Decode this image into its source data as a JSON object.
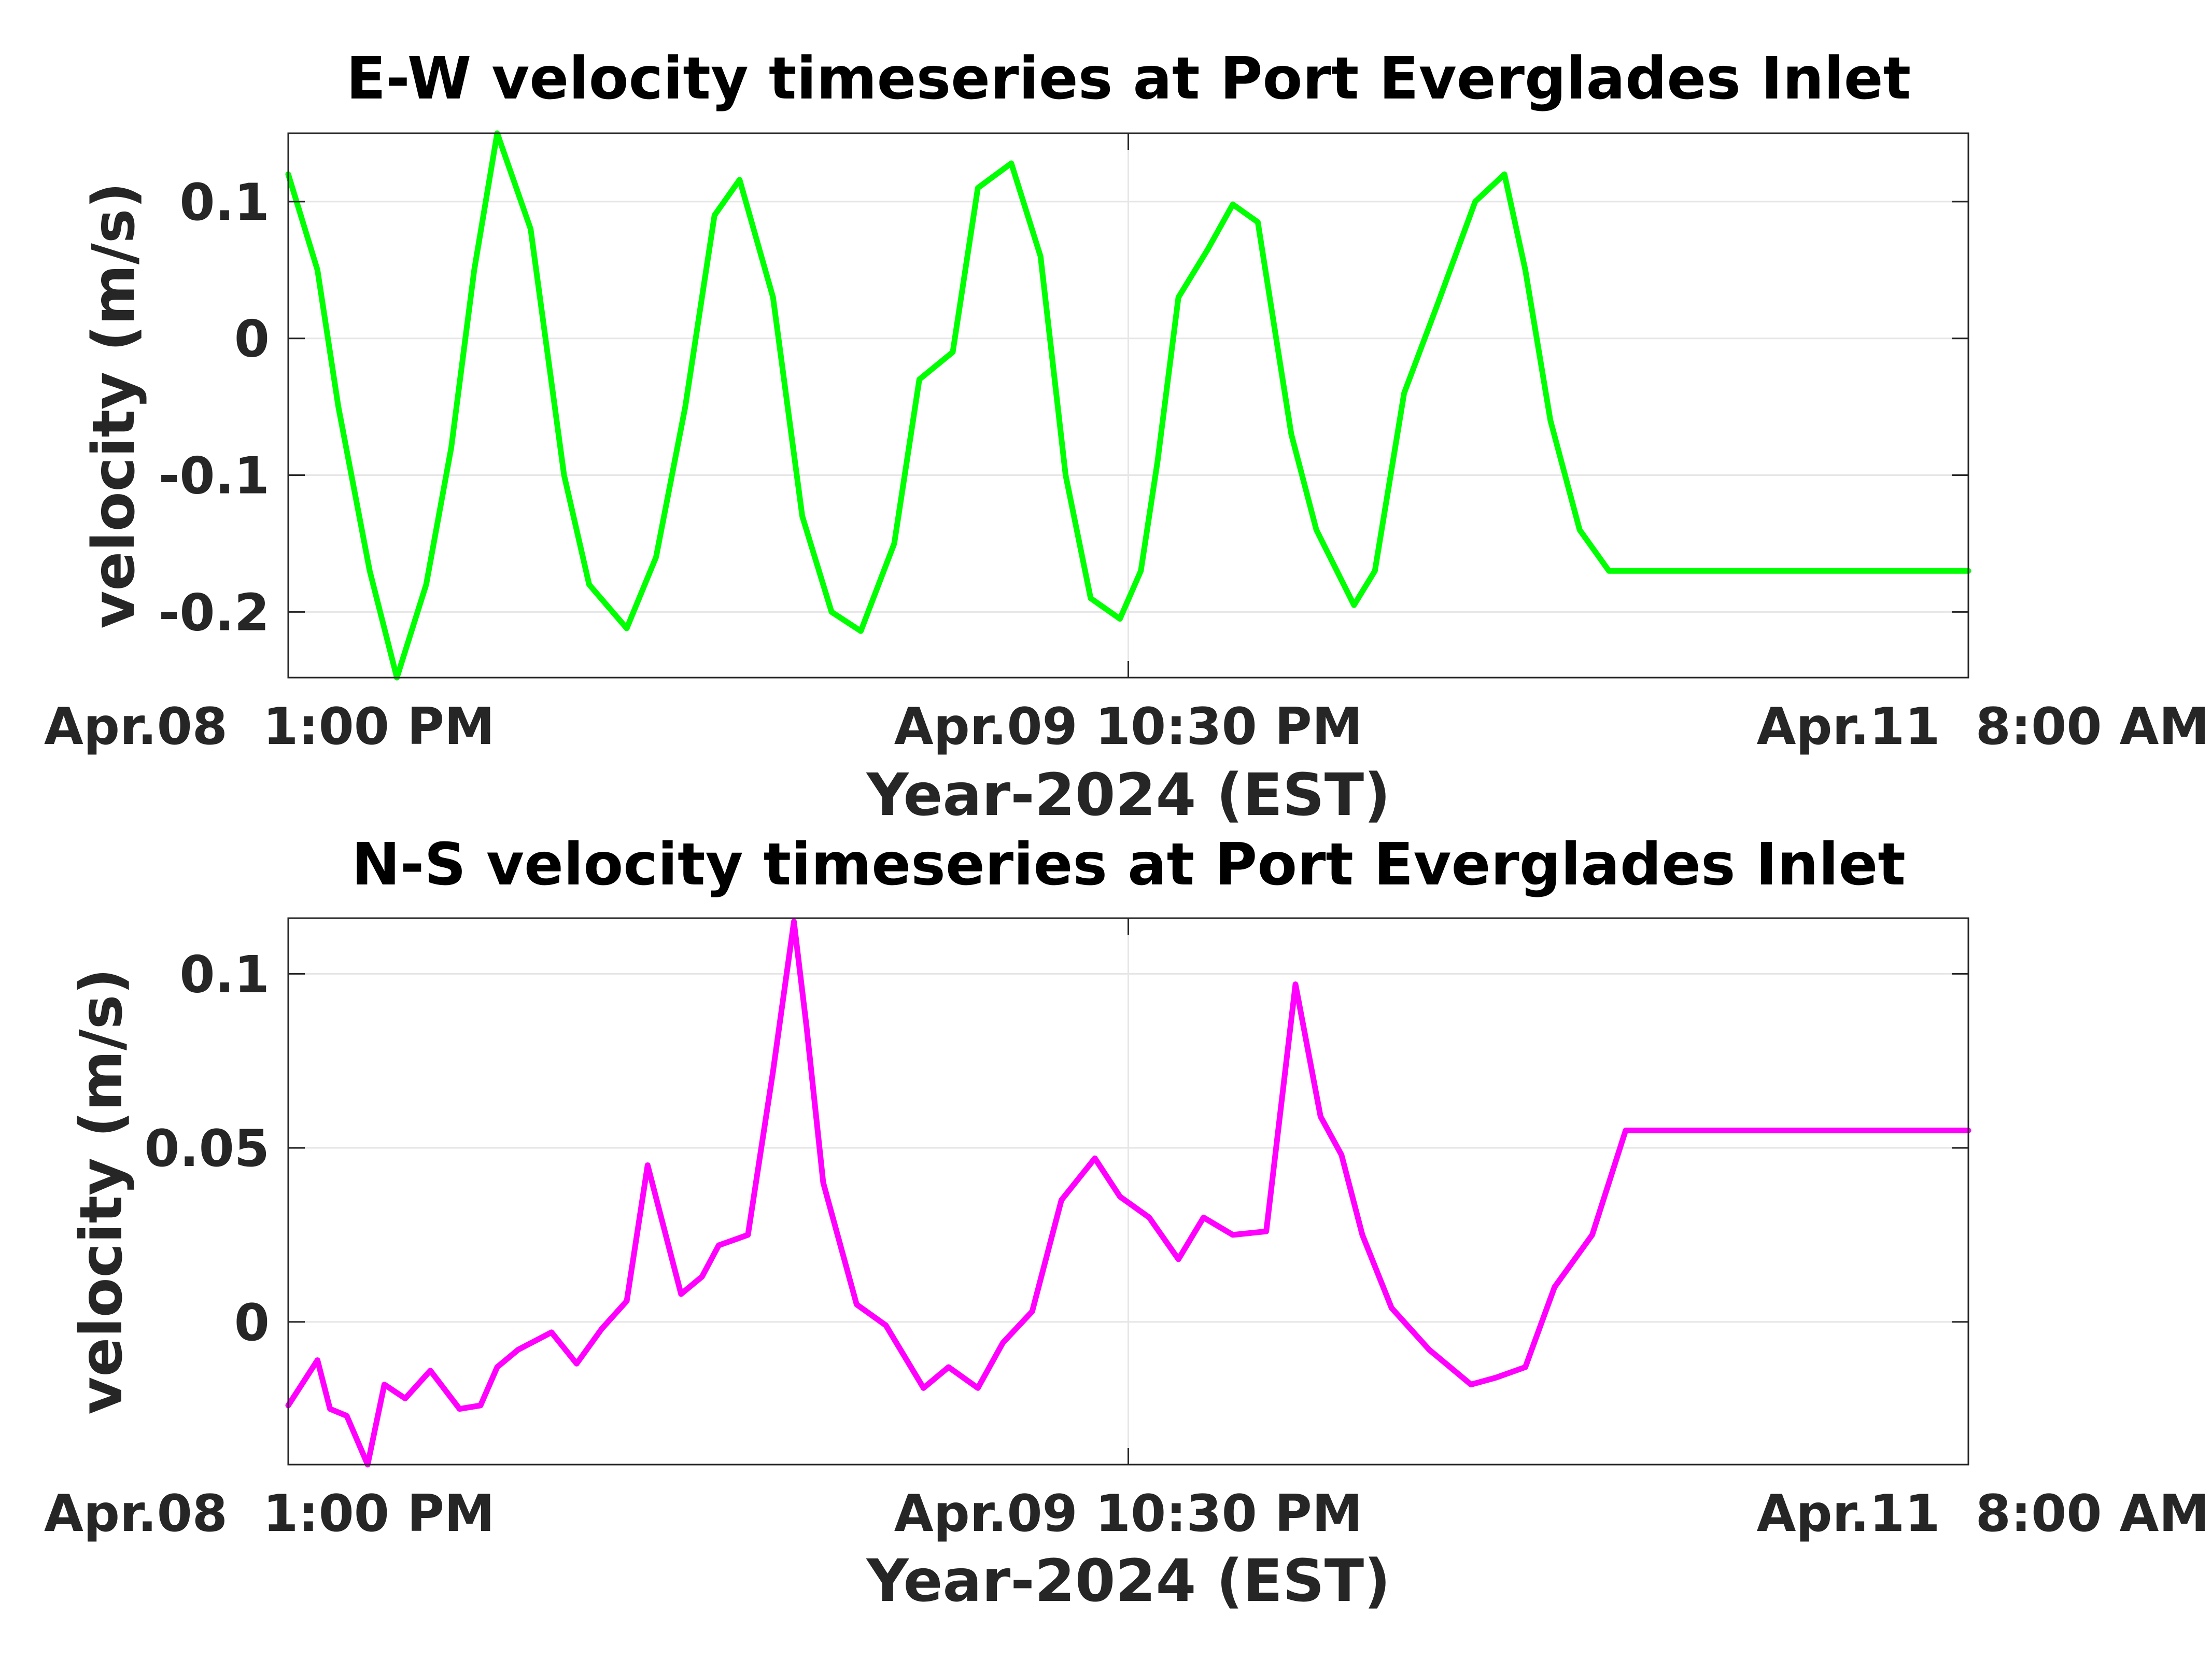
{
  "chart_data": [
    {
      "type": "line",
      "title": "E-W velocity timeseries at Port Everglades Inlet",
      "xlabel": "Year-2024 (EST)",
      "ylabel": "velocity (m/s)",
      "x_tick_labels": [
        "Apr.08  1:00 PM",
        "Apr.09 10:30 PM",
        "Apr.11  8:00 AM"
      ],
      "x_range": [
        "2024-04-08 13:00",
        "2024-04-11 08:00"
      ],
      "y_ticks": [
        -0.2,
        -0.1,
        0,
        0.1
      ],
      "y_tick_labels": [
        "-0.2",
        "-0.1",
        "0",
        "0.1"
      ],
      "ylim": [
        -0.248,
        0.15
      ],
      "grid": true,
      "series": [
        {
          "color": "#00ff00",
          "x": [
            "2024-04-08 13:00",
            "2024-04-08 14:10",
            "2024-04-08 15:00",
            "2024-04-08 16:15",
            "2024-04-08 17:20",
            "2024-04-08 18:30",
            "2024-04-08 19:30",
            "2024-04-08 20:25",
            "2024-04-08 21:20",
            "2024-04-08 22:40",
            "2024-04-09 00:00",
            "2024-04-09 01:00",
            "2024-04-09 02:30",
            "2024-04-09 03:40",
            "2024-04-09 04:50",
            "2024-04-09 06:00",
            "2024-04-09 07:00",
            "2024-04-09 08:20",
            "2024-04-09 09:30",
            "2024-04-09 10:40",
            "2024-04-09 11:50",
            "2024-04-09 13:10",
            "2024-04-09 14:10",
            "2024-04-09 15:30",
            "2024-04-09 16:30",
            "2024-04-09 17:50",
            "2024-04-09 19:00",
            "2024-04-09 20:00",
            "2024-04-09 21:00",
            "2024-04-09 22:10",
            "2024-04-09 23:00",
            "2024-04-09 23:40",
            "2024-04-10 00:30",
            "2024-04-10 01:40",
            "2024-04-10 02:40",
            "2024-04-10 03:40",
            "2024-04-10 05:00",
            "2024-04-10 06:00",
            "2024-04-10 07:30",
            "2024-04-10 08:20",
            "2024-04-10 09:30",
            "2024-04-10 10:50",
            "2024-04-10 12:20",
            "2024-04-10 13:30",
            "2024-04-10 14:20",
            "2024-04-10 15:20",
            "2024-04-10 16:30",
            "2024-04-10 17:40",
            "2024-04-10 19:00",
            "2024-04-10 20:20",
            "2024-04-10 21:10",
            "2024-04-10 22:20",
            "2024-04-10 23:40",
            "2024-04-11 00:40",
            "2024-04-11 01:40",
            "2024-04-11 02:50",
            "2024-04-11 04:00",
            "2024-04-11 05:10",
            "2024-04-11 06:30",
            "2024-04-11 08:00"
          ],
          "y": [
            0.12,
            0.05,
            -0.05,
            -0.17,
            -0.248,
            -0.18,
            -0.08,
            0.05,
            0.15,
            0.08,
            -0.1,
            -0.18,
            -0.212,
            -0.16,
            -0.05,
            0.09,
            0.116,
            0.03,
            -0.13,
            -0.2,
            -0.214,
            -0.15,
            -0.03,
            -0.01,
            0.11,
            0.128,
            0.06,
            -0.1,
            -0.19,
            -0.205,
            -0.17,
            -0.09,
            0.03,
            0.065,
            0.098,
            0.085,
            -0.07,
            -0.14,
            -0.195,
            -0.17,
            -0.04,
            0.025,
            0.1,
            0.12,
            0.05,
            -0.06,
            -0.14,
            -0.17,
            -0.17,
            -0.17,
            -0.17,
            -0.17,
            -0.17,
            -0.17,
            -0.17,
            -0.17,
            -0.17,
            -0.17,
            -0.17,
            -0.17
          ]
        }
      ]
    },
    {
      "type": "line",
      "title": "N-S velocity timeseries at Port Everglades Inlet",
      "xlabel": "Year-2024 (EST)",
      "ylabel": "velocity (m/s)",
      "x_tick_labels": [
        "Apr.08  1:00 PM",
        "Apr.09 10:30 PM",
        "Apr.11  8:00 AM"
      ],
      "x_range": [
        "2024-04-08 13:00",
        "2024-04-11 08:00"
      ],
      "y_ticks": [
        0,
        0.05,
        0.1
      ],
      "y_tick_labels": [
        "0",
        "0.05",
        "0.1"
      ],
      "ylim": [
        -0.041,
        0.116
      ],
      "grid": true,
      "series": [
        {
          "color": "#ff00ff",
          "x": [
            "2024-04-08 13:00",
            "2024-04-08 14:10",
            "2024-04-08 14:40",
            "2024-04-08 15:20",
            "2024-04-08 16:10",
            "2024-04-08 16:50",
            "2024-04-08 17:40",
            "2024-04-08 18:40",
            "2024-04-08 19:50",
            "2024-04-08 20:40",
            "2024-04-08 21:20",
            "2024-04-08 22:10",
            "2024-04-08 23:30",
            "2024-04-09 00:30",
            "2024-04-09 01:30",
            "2024-04-09 02:30",
            "2024-04-09 03:20",
            "2024-04-09 04:40",
            "2024-04-09 05:30",
            "2024-04-09 06:10",
            "2024-04-09 07:20",
            "2024-04-09 08:20",
            "2024-04-09 09:10",
            "2024-04-09 09:40",
            "2024-04-09 10:20",
            "2024-04-09 11:40",
            "2024-04-09 12:50",
            "2024-04-09 14:20",
            "2024-04-09 15:20",
            "2024-04-09 16:30",
            "2024-04-09 17:30",
            "2024-04-09 18:40",
            "2024-04-09 19:50",
            "2024-04-09 21:10",
            "2024-04-09 22:10",
            "2024-04-09 23:20",
            "2024-04-10 00:30",
            "2024-04-10 01:30",
            "2024-04-10 02:40",
            "2024-04-10 04:00",
            "2024-04-10 05:10",
            "2024-04-10 06:10",
            "2024-04-10 07:00",
            "2024-04-10 07:50",
            "2024-04-10 09:00",
            "2024-04-10 10:30",
            "2024-04-10 12:10",
            "2024-04-10 13:10",
            "2024-04-10 14:20",
            "2024-04-10 15:30",
            "2024-04-10 17:00",
            "2024-04-10 18:20",
            "2024-04-10 19:40",
            "2024-04-10 21:00",
            "2024-04-10 22:20",
            "2024-04-10 23:40",
            "2024-04-11 01:00",
            "2024-04-11 02:40",
            "2024-04-11 04:20",
            "2024-04-11 05:50",
            "2024-04-11 08:00"
          ],
          "y": [
            -0.024,
            -0.011,
            -0.025,
            -0.027,
            -0.041,
            -0.018,
            -0.022,
            -0.014,
            -0.025,
            -0.024,
            -0.013,
            -0.008,
            -0.003,
            -0.012,
            -0.002,
            0.006,
            0.045,
            0.008,
            0.013,
            0.022,
            0.025,
            0.072,
            0.115,
            0.085,
            0.04,
            0.005,
            -0.001,
            -0.019,
            -0.013,
            -0.019,
            -0.006,
            0.003,
            0.035,
            0.047,
            0.036,
            0.03,
            0.018,
            0.03,
            0.025,
            0.026,
            0.097,
            0.059,
            0.048,
            0.025,
            0.004,
            -0.008,
            -0.018,
            -0.016,
            -0.013,
            0.01,
            0.025,
            0.055,
            0.055,
            0.055,
            0.055,
            0.055,
            0.055,
            0.055,
            0.055,
            0.055,
            0.055
          ]
        }
      ]
    }
  ]
}
